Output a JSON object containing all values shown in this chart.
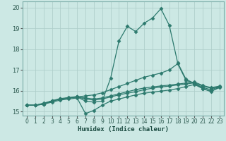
{
  "xlabel": "Humidex (Indice chaleur)",
  "ylabel": "",
  "background_color": "#cce8e4",
  "grid_color": "#b0cfcb",
  "line_color": "#2d7a6e",
  "xlim": [
    -0.5,
    23.5
  ],
  "ylim": [
    14.8,
    20.3
  ],
  "xticks": [
    0,
    1,
    2,
    3,
    4,
    5,
    6,
    7,
    8,
    9,
    10,
    11,
    12,
    13,
    14,
    15,
    16,
    17,
    18,
    19,
    20,
    21,
    22,
    23
  ],
  "yticks": [
    15,
    16,
    17,
    18,
    19,
    20
  ],
  "series": [
    {
      "x": [
        0,
        1,
        2,
        3,
        4,
        5,
        6,
        7,
        8,
        9,
        10,
        11,
        12,
        13,
        14,
        15,
        16,
        17,
        18,
        19,
        20,
        21,
        22,
        23
      ],
      "y": [
        15.3,
        15.3,
        15.4,
        15.5,
        15.6,
        15.65,
        15.7,
        15.5,
        15.45,
        15.5,
        16.6,
        18.4,
        19.1,
        18.85,
        19.25,
        19.5,
        19.95,
        19.15,
        17.35,
        16.55,
        16.35,
        16.1,
        15.95,
        16.2
      ],
      "marker": "D",
      "markersize": 2.5
    },
    {
      "x": [
        0,
        1,
        2,
        3,
        4,
        5,
        6,
        7,
        8,
        9,
        10,
        11,
        12,
        13,
        14,
        15,
        16,
        17,
        18,
        19,
        20,
        21,
        22,
        23
      ],
      "y": [
        15.3,
        15.3,
        15.35,
        15.5,
        15.6,
        15.65,
        15.7,
        15.75,
        15.8,
        15.9,
        16.05,
        16.2,
        16.35,
        16.5,
        16.65,
        16.75,
        16.85,
        17.0,
        17.3,
        16.5,
        16.35,
        16.15,
        16.05,
        16.2
      ],
      "marker": "D",
      "markersize": 2.5
    },
    {
      "x": [
        0,
        1,
        2,
        3,
        4,
        5,
        6,
        7,
        8,
        9,
        10,
        11,
        12,
        13,
        14,
        15,
        16,
        17,
        18,
        19,
        20,
        21,
        22,
        23
      ],
      "y": [
        15.3,
        15.3,
        15.35,
        15.45,
        15.55,
        15.6,
        15.65,
        14.9,
        15.05,
        15.3,
        15.5,
        15.6,
        15.7,
        15.8,
        15.88,
        15.93,
        15.98,
        16.03,
        16.1,
        16.2,
        16.3,
        16.1,
        15.98,
        16.15
      ],
      "marker": "D",
      "markersize": 2.5
    },
    {
      "x": [
        0,
        1,
        2,
        3,
        4,
        5,
        6,
        7,
        8,
        9,
        10,
        11,
        12,
        13,
        14,
        15,
        16,
        17,
        18,
        19,
        20,
        21,
        22,
        23
      ],
      "y": [
        15.3,
        15.3,
        15.35,
        15.5,
        15.6,
        15.65,
        15.7,
        15.6,
        15.55,
        15.6,
        15.7,
        15.8,
        15.88,
        15.95,
        16.05,
        16.12,
        16.18,
        16.22,
        16.28,
        16.32,
        16.38,
        16.22,
        16.12,
        16.2
      ],
      "marker": "D",
      "markersize": 2.5
    },
    {
      "x": [
        0,
        1,
        2,
        3,
        4,
        5,
        6,
        7,
        8,
        9,
        10,
        11,
        12,
        13,
        14,
        15,
        16,
        17,
        18,
        19,
        20,
        21,
        22,
        23
      ],
      "y": [
        15.3,
        15.3,
        15.38,
        15.52,
        15.62,
        15.67,
        15.72,
        15.65,
        15.6,
        15.65,
        15.75,
        15.85,
        15.95,
        16.05,
        16.13,
        16.18,
        16.23,
        16.27,
        16.32,
        16.37,
        16.42,
        16.25,
        16.15,
        16.22
      ],
      "marker": "D",
      "markersize": 2.5
    }
  ]
}
